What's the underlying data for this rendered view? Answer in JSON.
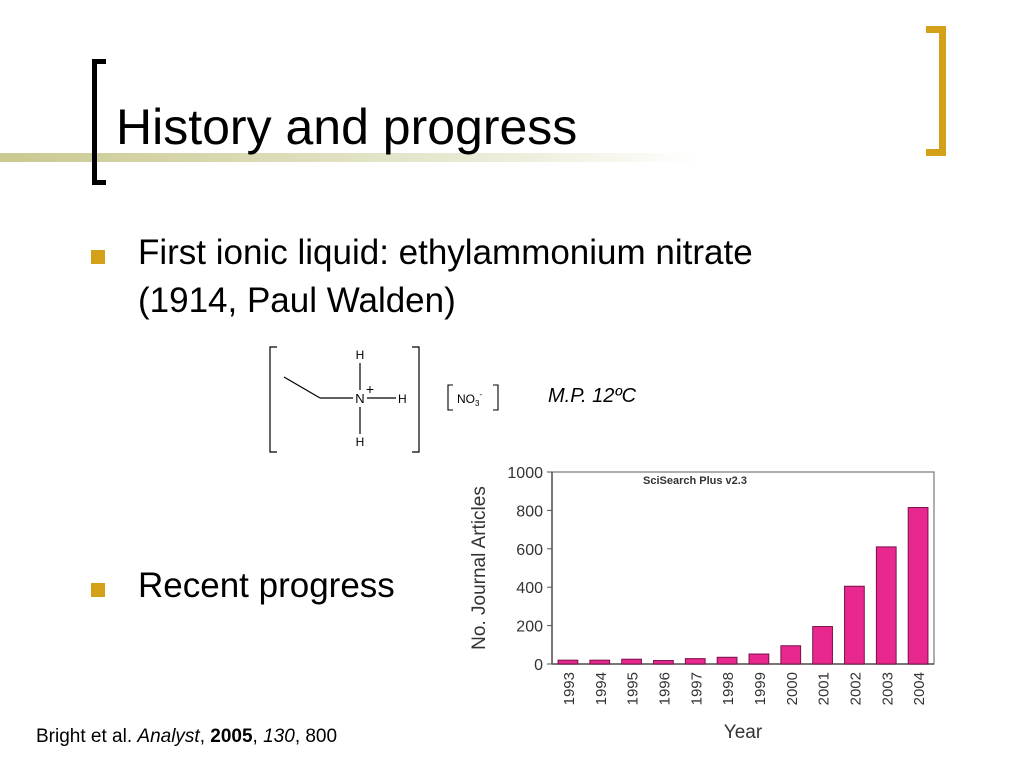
{
  "slide": {
    "title": "History and progress",
    "bullets": [
      {
        "text": "First ionic liquid: ethylammonium nitrate (1914, Paul Walden)"
      },
      {
        "text": "Recent progress"
      }
    ],
    "structure": {
      "atom_n": "N",
      "charge": "+",
      "atom_h_top": "H",
      "atom_h_right": "H",
      "atom_h_bottom": "H",
      "anion": "NO",
      "anion_sub": "3",
      "anion_sup": "-"
    },
    "melting_point": "M.P. 12ºC",
    "citation": {
      "authors": "Bright et al. ",
      "journal": "Analyst",
      "sep1": ", ",
      "year": "2005",
      "sep2": ", ",
      "volume": "130",
      "page": ", 800"
    }
  },
  "chart_data": {
    "type": "bar",
    "title": "SciSearch Plus v2.3",
    "xlabel": "Year",
    "ylabel": "No. Journal Articles",
    "categories": [
      "1993",
      "1994",
      "1995",
      "1996",
      "1997",
      "1998",
      "1999",
      "2000",
      "2001",
      "2002",
      "2003",
      "2004"
    ],
    "values": [
      20,
      20,
      25,
      18,
      28,
      35,
      52,
      95,
      195,
      405,
      610,
      815
    ],
    "ylim": [
      0,
      1000
    ],
    "yticks": [
      0,
      200,
      400,
      600,
      800,
      1000
    ],
    "grid": false,
    "legend": "none",
    "bar_color": "#e8288f"
  }
}
